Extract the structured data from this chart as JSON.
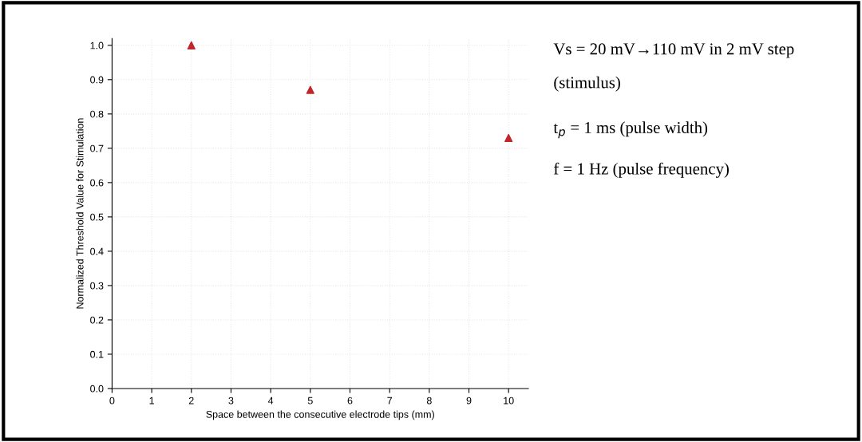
{
  "chart_data": {
    "type": "scatter",
    "xlabel": "Space between the consecutive electrode tips (mm)",
    "ylabel": "Normalized Threshold Value for Stimulation",
    "x": [
      2,
      5,
      10
    ],
    "series": [
      {
        "color": "#c0272d",
        "values": [
          1.0,
          0.87,
          0.73
        ]
      }
    ],
    "marker": "triangle",
    "xlim": [
      0,
      10.5
    ],
    "xticks": [
      0,
      1,
      2,
      3,
      4,
      5,
      6,
      7,
      8,
      9,
      10
    ],
    "ylim": [
      0,
      1.02
    ],
    "yticks": [
      {
        "value": 0,
        "label": "0.0"
      },
      0.1,
      0.2,
      0.3,
      0.4,
      0.5,
      0.6,
      0.7,
      0.8,
      0.9,
      {
        "value": 1,
        "label": "1.0"
      }
    ],
    "grid": true,
    "annotations": [
      "Vs = 20 mV→110 mV in 2 mV step",
      "(stimulus)",
      "t$_{p}$ = 1 ms (pulse width)",
      "f = 1 Hz (pulse frequency)"
    ]
  }
}
